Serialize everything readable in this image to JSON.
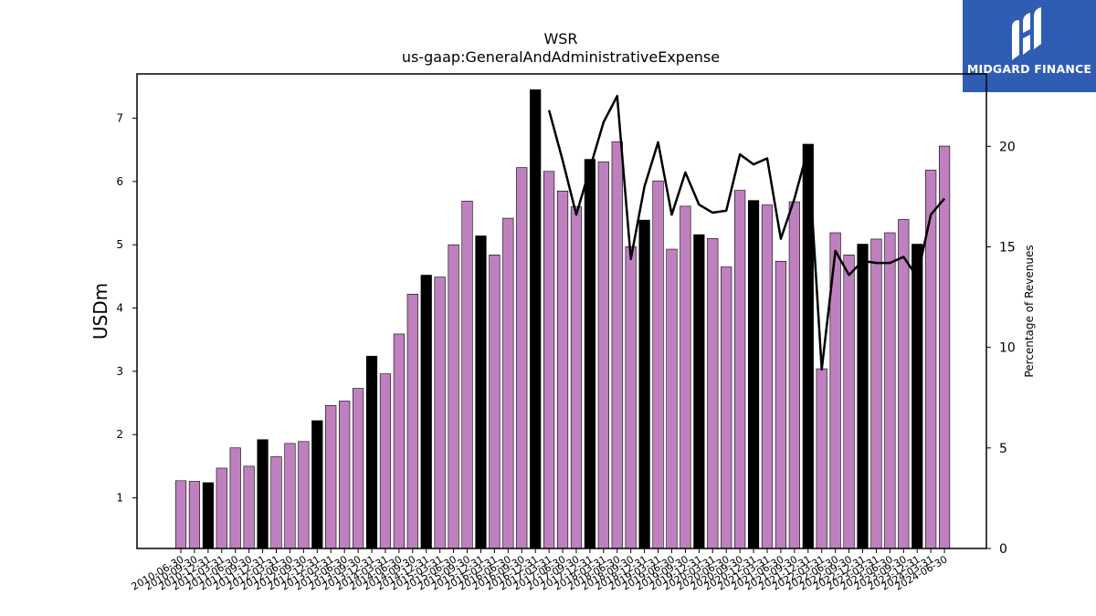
{
  "brand": {
    "name": "MIDGARD FINANCE",
    "icon": "midgard-logo-icon",
    "color": "#2f5db3"
  },
  "chart_data": {
    "type": "bar",
    "title": "WSR",
    "subtitle": "us-gaap:GeneralAndAdministrativeExpense",
    "ylabel": "USDm",
    "y2label": "Percentage of Revenues",
    "ylim": [
      0.2,
      7.7
    ],
    "y2lim": [
      0,
      23.6
    ],
    "yticks": [
      1,
      2,
      3,
      4,
      5,
      6,
      7
    ],
    "y2ticks": [
      0,
      5,
      10,
      15,
      20
    ],
    "colors": {
      "quarter_bar": "#bf80bf",
      "fiscal_year_end_bar": "#000000",
      "line": "#000000"
    },
    "categories": [
      "2010-06-30",
      "2010-09-30",
      "2010-12-31",
      "2011-03-31",
      "2011-06-30",
      "2011-09-30",
      "2011-12-31",
      "2012-03-31",
      "2012-06-30",
      "2012-09-30",
      "2012-12-31",
      "2013-03-31",
      "2013-06-30",
      "2013-09-30",
      "2013-12-31",
      "2014-03-31",
      "2014-06-30",
      "2014-09-30",
      "2014-12-31",
      "2015-03-31",
      "2015-06-30",
      "2015-09-30",
      "2015-12-31",
      "2016-03-31",
      "2016-06-30",
      "2016-09-30",
      "2016-12-31",
      "2017-03-31",
      "2017-06-30",
      "2017-09-30",
      "2017-12-31",
      "2018-03-31",
      "2018-06-30",
      "2018-09-30",
      "2018-12-31",
      "2019-03-31",
      "2019-06-30",
      "2019-09-30",
      "2019-12-31",
      "2020-03-31",
      "2020-06-30",
      "2020-09-30",
      "2020-12-31",
      "2021-03-31",
      "2021-06-30",
      "2021-09-30",
      "2021-12-31",
      "2022-03-31",
      "2022-06-30",
      "2022-09-30",
      "2022-12-31",
      "2023-03-31",
      "2023-06-30",
      "2023-09-30",
      "2023-12-31",
      "2024-03-31",
      "2024-06-30"
    ],
    "xticklabels": [
      "2010-06-30",
      "2010-09-30",
      "2010-12-31",
      "2011-03-31",
      "2011-06-30",
      "2011-09-30",
      "2011-12-31",
      "2012-03-31",
      "2012-06-30",
      "2012-09-30",
      "2012-12-31",
      "2013-03-31",
      "2013-06-30",
      "2013-09-30",
      "2013-12-31",
      "2014-03-31",
      "2014-06-30",
      "2014-09-30",
      "2014-12-31",
      "2015-03-31",
      "2015-06-30",
      "2015-09-30",
      "2015-12-31",
      "2016-03-31",
      "2016-06-30",
      "2016-09-30",
      "2016-12-31",
      "2017-03-31",
      "2017-06-30",
      "2017-09-30",
      "2017-12-31",
      "2018-03-31",
      "2018-06-30",
      "2018-09-30",
      "2018-12-31",
      "2019-03-31",
      "2019-06-30",
      "2019-09-30",
      "2019-12-31",
      "2020-03-31",
      "2020-06-30",
      "2020-09-30",
      "2020-12-31",
      "2021-03-31",
      "2021-06-30",
      "2021-09-30",
      "2021-12-31",
      "2022-03-31",
      "2022-06-30",
      "2022-09-30",
      "2022-12-31",
      "2023-03-31",
      "2023-06-30",
      "2023-09-30",
      "2023-12-31",
      "2024-03-31",
      "2024-06-30"
    ],
    "values": [
      1.27,
      1.26,
      1.24,
      1.47,
      1.79,
      1.5,
      1.92,
      1.65,
      1.86,
      1.89,
      2.22,
      2.46,
      2.53,
      2.73,
      3.24,
      2.96,
      3.59,
      4.22,
      4.52,
      4.49,
      5.0,
      5.69,
      5.14,
      4.84,
      5.42,
      6.22,
      7.45,
      6.16,
      5.85,
      5.6,
      6.35,
      6.31,
      6.63,
      4.97,
      5.39,
      6.01,
      4.93,
      5.61,
      5.16,
      5.1,
      4.65,
      5.86,
      5.7,
      5.63,
      4.74,
      5.68,
      6.59,
      3.04,
      5.19,
      4.84,
      5.01,
      5.09,
      5.19,
      5.4,
      5.01,
      6.18,
      6.56
    ],
    "fiscal_year_end": [
      false,
      false,
      true,
      false,
      false,
      false,
      true,
      false,
      false,
      false,
      true,
      false,
      false,
      false,
      true,
      false,
      false,
      false,
      true,
      false,
      false,
      false,
      true,
      false,
      false,
      false,
      true,
      false,
      false,
      false,
      true,
      false,
      false,
      false,
      true,
      false,
      false,
      false,
      true,
      false,
      false,
      false,
      true,
      false,
      false,
      false,
      true,
      false,
      false,
      false,
      true,
      false,
      false,
      false,
      true,
      false,
      false
    ],
    "percentage_of_revenues": [
      null,
      null,
      null,
      null,
      null,
      null,
      null,
      null,
      null,
      null,
      null,
      null,
      null,
      null,
      null,
      null,
      null,
      null,
      null,
      null,
      null,
      null,
      null,
      null,
      null,
      null,
      null,
      21.8,
      19.3,
      16.6,
      18.9,
      21.2,
      22.5,
      14.4,
      18.0,
      20.2,
      16.6,
      18.7,
      17.1,
      16.7,
      16.8,
      19.6,
      19.1,
      19.4,
      15.4,
      17.4,
      19.9,
      8.9,
      14.8,
      13.6,
      14.3,
      14.2,
      14.2,
      14.5,
      13.5,
      16.6,
      17.4
    ]
  }
}
